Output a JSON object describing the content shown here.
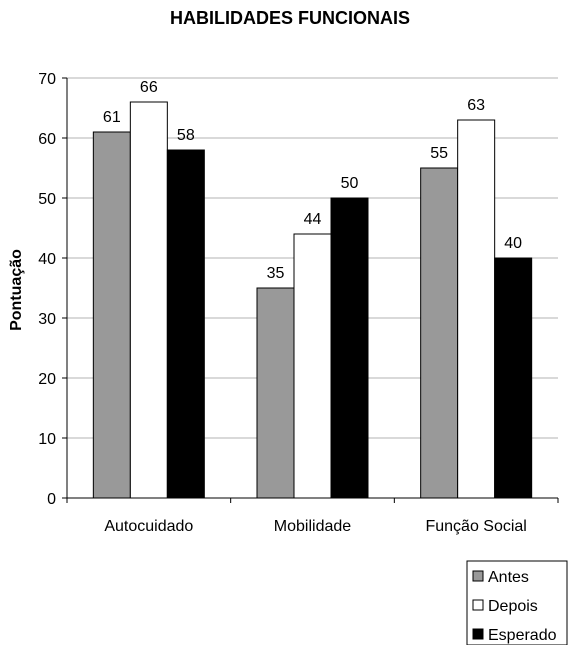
{
  "chart_data": {
    "type": "bar",
    "title": "HABILIDADES FUNCIONAIS",
    "ylabel": "Pontuação",
    "xlabel": "",
    "categories": [
      "Autocuidado",
      "Mobilidade",
      "Função Social"
    ],
    "ylim": [
      0,
      70
    ],
    "yticks": [
      "0",
      "10",
      "20",
      "30",
      "40",
      "50",
      "60",
      "70"
    ],
    "grid": true,
    "legend_position": "bottom-right",
    "series": [
      {
        "name": "Antes",
        "values": [
          61,
          35,
          55
        ],
        "labels": [
          "61",
          "35",
          "55"
        ],
        "color": "#999999"
      },
      {
        "name": "Depois",
        "values": [
          66,
          44,
          63
        ],
        "labels": [
          "66",
          "44",
          "63"
        ],
        "color": "#ffffff"
      },
      {
        "name": "Esperado",
        "values": [
          58,
          50,
          40
        ],
        "labels": [
          "58",
          "50",
          "40"
        ],
        "color": "#000000"
      }
    ]
  }
}
